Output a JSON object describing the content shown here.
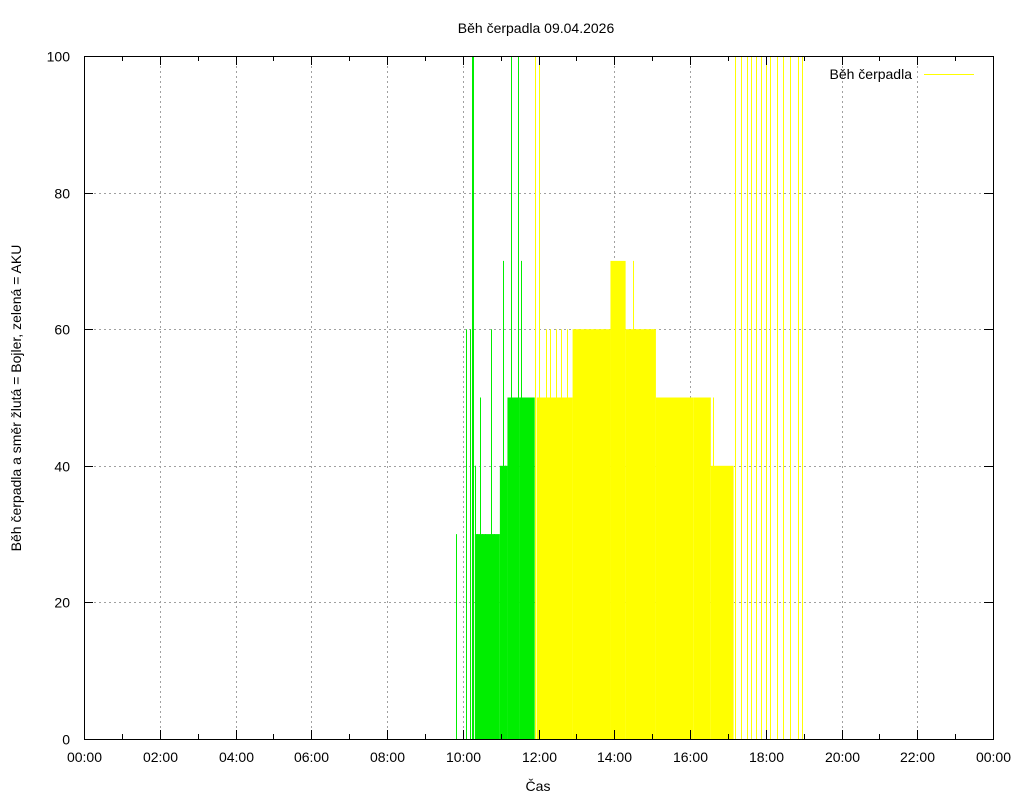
{
  "chart_data": {
    "type": "bar",
    "title": "Běh čerpadla 09.04.2026",
    "xlabel": "Čas",
    "ylabel": "Běh čerpadla a směr žlutá = Bojler, zelená = AKU",
    "xlim": [
      0,
      24
    ],
    "ylim": [
      0,
      100
    ],
    "x_ticks": [
      "00:00",
      "02:00",
      "04:00",
      "06:00",
      "08:00",
      "10:00",
      "12:00",
      "14:00",
      "16:00",
      "18:00",
      "20:00",
      "22:00",
      "00:00"
    ],
    "y_ticks": [
      0,
      20,
      40,
      60,
      80,
      100
    ],
    "grid": true,
    "legend": {
      "position": "top-right",
      "entries": [
        {
          "name": "Běh čerpadla",
          "color": "#ffff00"
        }
      ]
    },
    "x_unit": "hours",
    "series": [
      {
        "name": "AKU",
        "color": "#00ee00",
        "fills": [
          {
            "x0": 10.32,
            "x1": 10.98,
            "y": 30
          },
          {
            "x0": 10.98,
            "x1": 11.18,
            "y": 40
          },
          {
            "x0": 11.18,
            "x1": 11.5,
            "y": 50
          },
          {
            "x0": 11.5,
            "x1": 11.9,
            "y": 50
          }
        ],
        "spikes": [
          {
            "x": 9.83,
            "y": 30
          },
          {
            "x": 10.08,
            "y": 60
          },
          {
            "x": 10.18,
            "y": 60
          },
          {
            "x": 10.25,
            "y": 100
          },
          {
            "x": 10.28,
            "y": 100
          },
          {
            "x": 10.32,
            "y": 40
          },
          {
            "x": 10.38,
            "y": 30
          },
          {
            "x": 10.45,
            "y": 50
          },
          {
            "x": 10.52,
            "y": 30
          },
          {
            "x": 10.6,
            "y": 30
          },
          {
            "x": 10.75,
            "y": 60
          },
          {
            "x": 10.82,
            "y": 30
          },
          {
            "x": 11.05,
            "y": 70
          },
          {
            "x": 11.12,
            "y": 40
          },
          {
            "x": 11.22,
            "y": 40
          },
          {
            "x": 11.28,
            "y": 100
          },
          {
            "x": 11.35,
            "y": 50
          },
          {
            "x": 11.45,
            "y": 100
          },
          {
            "x": 11.55,
            "y": 70
          },
          {
            "x": 11.62,
            "y": 40
          },
          {
            "x": 11.68,
            "y": 50
          },
          {
            "x": 11.75,
            "y": 50
          }
        ]
      },
      {
        "name": "Bojler",
        "color": "#ffff00",
        "fills": [
          {
            "x0": 11.95,
            "x1": 12.2,
            "y": 50
          },
          {
            "x0": 12.2,
            "x1": 12.9,
            "y": 50
          },
          {
            "x0": 12.9,
            "x1": 13.9,
            "y": 60
          },
          {
            "x0": 13.9,
            "x1": 14.3,
            "y": 70
          },
          {
            "x0": 14.3,
            "x1": 15.1,
            "y": 60
          },
          {
            "x0": 15.1,
            "x1": 16.1,
            "y": 50
          },
          {
            "x0": 16.1,
            "x1": 16.55,
            "y": 50
          },
          {
            "x0": 16.55,
            "x1": 17.15,
            "y": 40
          }
        ],
        "spikes": [
          {
            "x": 11.92,
            "y": 100
          },
          {
            "x": 12.0,
            "y": 100
          },
          {
            "x": 12.2,
            "y": 60
          },
          {
            "x": 12.3,
            "y": 60
          },
          {
            "x": 12.45,
            "y": 60
          },
          {
            "x": 12.6,
            "y": 60
          },
          {
            "x": 12.75,
            "y": 60
          },
          {
            "x": 13.05,
            "y": 60
          },
          {
            "x": 13.25,
            "y": 60
          },
          {
            "x": 13.45,
            "y": 60
          },
          {
            "x": 13.7,
            "y": 60
          },
          {
            "x": 14.5,
            "y": 70
          },
          {
            "x": 14.85,
            "y": 60
          },
          {
            "x": 15.0,
            "y": 60
          },
          {
            "x": 15.2,
            "y": 50
          },
          {
            "x": 15.5,
            "y": 50
          },
          {
            "x": 15.8,
            "y": 50
          },
          {
            "x": 16.25,
            "y": 50
          },
          {
            "x": 16.4,
            "y": 50
          },
          {
            "x": 16.6,
            "y": 50
          },
          {
            "x": 17.05,
            "y": 30
          },
          {
            "x": 17.2,
            "y": 100
          },
          {
            "x": 17.35,
            "y": 100
          },
          {
            "x": 17.5,
            "y": 100
          },
          {
            "x": 17.62,
            "y": 100
          },
          {
            "x": 17.75,
            "y": 100
          },
          {
            "x": 17.88,
            "y": 100
          },
          {
            "x": 18.0,
            "y": 100
          },
          {
            "x": 18.12,
            "y": 100
          },
          {
            "x": 18.3,
            "y": 100
          },
          {
            "x": 18.45,
            "y": 100
          },
          {
            "x": 18.65,
            "y": 100
          },
          {
            "x": 18.85,
            "y": 100
          },
          {
            "x": 18.95,
            "y": 100
          }
        ]
      }
    ]
  }
}
